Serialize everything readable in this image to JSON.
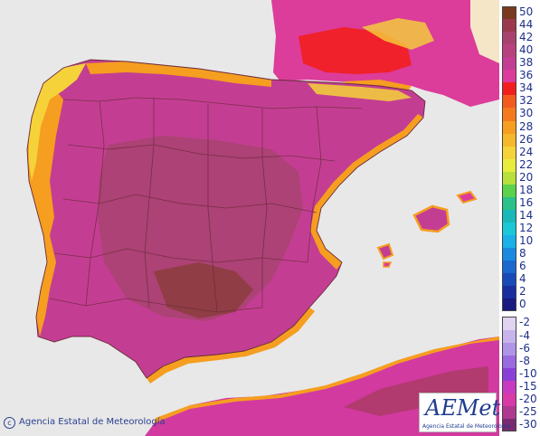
{
  "map": {
    "colors": {
      "sea": "#e8e8e8",
      "africa": "#d23aa0",
      "peninsula": "#c33e92",
      "interior": "#a84370",
      "coast_orange": "#f59e20",
      "coast_yellow": "#f5d23a",
      "france_pink": "#dc3c9a",
      "france_red": "#f21e1e",
      "borders": "#6a2a3a"
    }
  },
  "legend": {
    "items": [
      {
        "label": "50",
        "color": "#7a3a1e"
      },
      {
        "label": "44",
        "color": "#9b3a4e"
      },
      {
        "label": "42",
        "color": "#a84370"
      },
      {
        "label": "40",
        "color": "#b8427e"
      },
      {
        "label": "38",
        "color": "#c33e92"
      },
      {
        "label": "36",
        "color": "#dc3c9a"
      },
      {
        "label": "34",
        "color": "#f21e1e"
      },
      {
        "label": "32",
        "color": "#f25a1e"
      },
      {
        "label": "30",
        "color": "#f57a1e"
      },
      {
        "label": "28",
        "color": "#f59e20"
      },
      {
        "label": "26",
        "color": "#f5b82a"
      },
      {
        "label": "24",
        "color": "#f5d23a"
      },
      {
        "label": "22",
        "color": "#e8ec3a"
      },
      {
        "label": "20",
        "color": "#b8e03a"
      },
      {
        "label": "18",
        "color": "#5ad24a"
      },
      {
        "label": "16",
        "color": "#2ac28a"
      },
      {
        "label": "14",
        "color": "#1ab8b8"
      },
      {
        "label": "12",
        "color": "#1ac8d8"
      },
      {
        "label": "10",
        "color": "#1ab0e8"
      },
      {
        "label": "8",
        "color": "#1a8ae0"
      },
      {
        "label": "6",
        "color": "#1a68d0"
      },
      {
        "label": "4",
        "color": "#1a4ab8"
      },
      {
        "label": "2",
        "color": "#1a2ea0"
      },
      {
        "label": "0",
        "color": "#1a1a80"
      },
      {
        "label": "-2",
        "color": "#e0d4f0"
      },
      {
        "label": "-4",
        "color": "#c8b4ec"
      },
      {
        "label": "-6",
        "color": "#b094e8"
      },
      {
        "label": "-8",
        "color": "#9a6ae0"
      },
      {
        "label": "-10",
        "color": "#8a40d8"
      },
      {
        "label": "-15",
        "color": "#c83ac0"
      },
      {
        "label": "-20",
        "color": "#d83aa8"
      },
      {
        "label": "-25",
        "color": "#b03890"
      },
      {
        "label": "-30",
        "color": "#7a2a70"
      }
    ]
  },
  "copyright": {
    "symbol": "c",
    "text": "Agencia Estatal de Meteorología"
  },
  "logo": {
    "word": "AEMet",
    "subtitle": "Agencia Estatal de Meteorología"
  }
}
